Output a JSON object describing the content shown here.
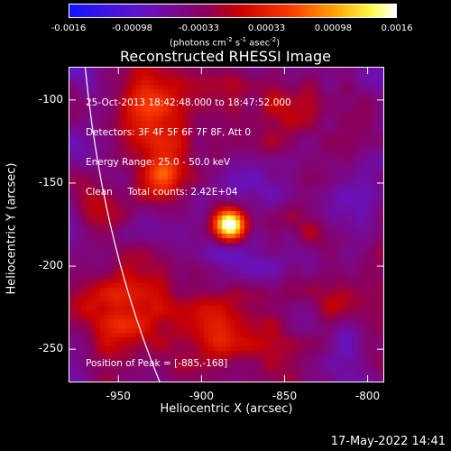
{
  "colorbar": {
    "tick_labels": [
      "-0.0016",
      "-0.00098",
      "-0.00033",
      "0.00033",
      "0.00098",
      "0.0016"
    ],
    "tick_values": [
      -0.0016,
      -0.00098,
      -0.00033,
      0.00033,
      0.00098,
      0.0016
    ],
    "min": -0.0016,
    "max": 0.0016,
    "unit_prefix": "(photons cm",
    "unit_exp1": "-2",
    "unit_mid": " s",
    "unit_exp2": "-1",
    "unit_mid2": " asec",
    "unit_exp3": "-2",
    "unit_suffix": ")"
  },
  "image": {
    "title": "Reconstructed RHESSI Image",
    "xlabel": "Heliocentric X (arcsec)",
    "ylabel": "Heliocentric Y (arcsec)",
    "x_ticks": [
      "-950",
      "-900",
      "-850",
      "-800"
    ],
    "x_tick_values": [
      -950,
      -900,
      -850,
      -800
    ],
    "y_ticks": [
      "-100",
      "-150",
      "-200",
      "-250"
    ],
    "y_tick_values": [
      -100,
      -150,
      -200,
      -250
    ],
    "xlim": [
      -980,
      -790
    ],
    "ylim": [
      -270,
      -80
    ],
    "info_lines": [
      "25-Oct-2013 18:42:48.000 to 18:47:52.000",
      "Detectors: 3F 4F 5F 6F 7F 8F, Att 0",
      "Energy Range: 25.0 - 50.0 keV",
      "Clean     Total counts: 2.42E+04"
    ],
    "peak_label": "Position of Peak = [-885,-168]",
    "peak_x": -885,
    "peak_y": -168
  },
  "footer": {
    "timestamp": "17-May-2022 14:41"
  }
}
